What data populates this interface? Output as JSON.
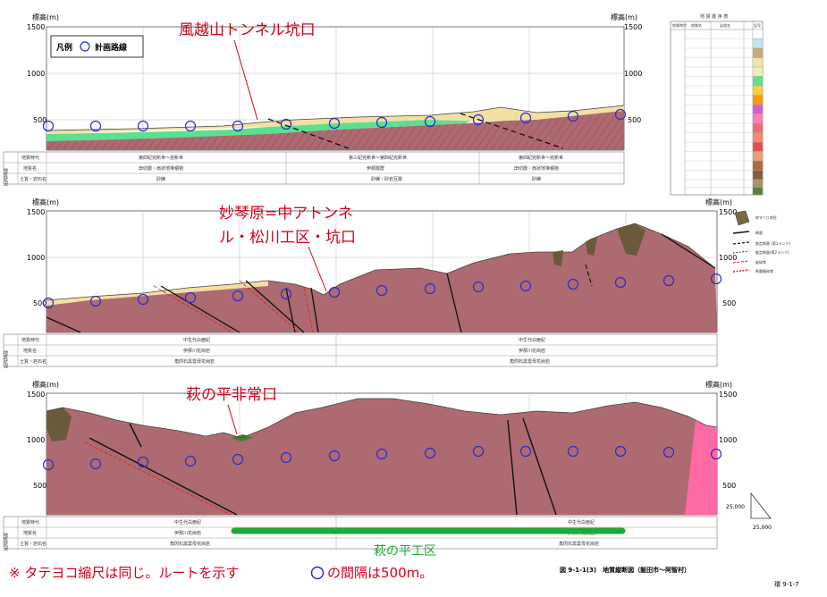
{
  "axis": {
    "ylabel": "標高(m)",
    "ticks": [
      "1500",
      "1000",
      "500"
    ]
  },
  "legend": {
    "title": "凡例",
    "route_label": "計画路線"
  },
  "panel1": {
    "callout": "風越山トンネル坑口",
    "rows": [
      "地質時代",
      "地質名",
      "土質・岩石名"
    ],
    "side_label": "地質状況",
    "period_cells": [
      "第四紀完新世～完新世",
      "第三紀完新世～第四紀完新世",
      "第四紀完新世～完新世"
    ],
    "name_cells": [
      "田切層・扇状地堆積物",
      "伊那層群",
      "田切層・扇状地堆積物"
    ],
    "rock_cells": [
      "砂礫",
      "砂礫・砂岩互層",
      "砂礫"
    ]
  },
  "panel2": {
    "callout_line1": "妙琴原=中アトンネ",
    "callout_line2": "ル・松川工区・坑口",
    "rows": [
      "地質時代",
      "地質名",
      "土質・岩石名"
    ],
    "side_label": "地質状況",
    "period_cells": [
      "中生代白亜紀",
      "中生代白亜紀"
    ],
    "name_cells": [
      "伊那川花崗岩",
      "伊那川花崗岩"
    ],
    "rock_cells": [
      "角閃石黒雲母花崗岩",
      "角閃石黒雲母花崗岩"
    ]
  },
  "panel3": {
    "callout": "萩の平非常口",
    "section_label": "萩の平工区",
    "rows": [
      "地質時代",
      "地質名",
      "土質・岩石名"
    ],
    "side_label": "地質状況",
    "period_cells": [
      "中生代白亜紀",
      "中生代白亜紀"
    ],
    "name_cells": [
      "伊那川花崗岩",
      "伊那川花崗岩"
    ],
    "rock_cells": [
      "角閃石黒雲母花崗岩",
      "角閃石黒雲母花崗岩"
    ]
  },
  "geo_legend": {
    "title": "地 質 層 序 表",
    "headers": [
      "地質時代",
      "地質名",
      "岩相名",
      "記号"
    ],
    "colors": [
      "#ffffff",
      "#bfe6ef",
      "#c8a87a",
      "#f4e4a8",
      "#eeeebb",
      "#5fe08a",
      "#f5d040",
      "#ff9900",
      "#d060c8",
      "#ff80b0",
      "#f06a78",
      "#f58a6a",
      "#e05050",
      "#e8a070",
      "#b06a3a",
      "#8a5a3a",
      "#b09060",
      "#5a8040"
    ]
  },
  "symbol_legend": {
    "items": [
      "地すべり地形",
      "断層",
      "推定断層 (第1ランク)",
      "推定断層(第2ランク)",
      "破砕帯",
      "断層破砕帯"
    ]
  },
  "scale": {
    "vertical": "25,000",
    "horizontal": "25,000"
  },
  "figure_caption": "図 9-1-1(3)　地質縦断図（飯田市～阿智村）",
  "page_number": "環 9-1-7",
  "footnote_prefix": "※ タテヨコ縮尺は同じ。ルートを示す",
  "footnote_suffix": "の間隔は500m。",
  "colors": {
    "callout_red": "#d0021b",
    "granite": "#ad6a70",
    "sand": "#f3dfa4",
    "green": "#5ce090",
    "route_circle": "#2a2ad0",
    "section_bar": "#1ea93a",
    "pink": "#ff6aa5"
  }
}
